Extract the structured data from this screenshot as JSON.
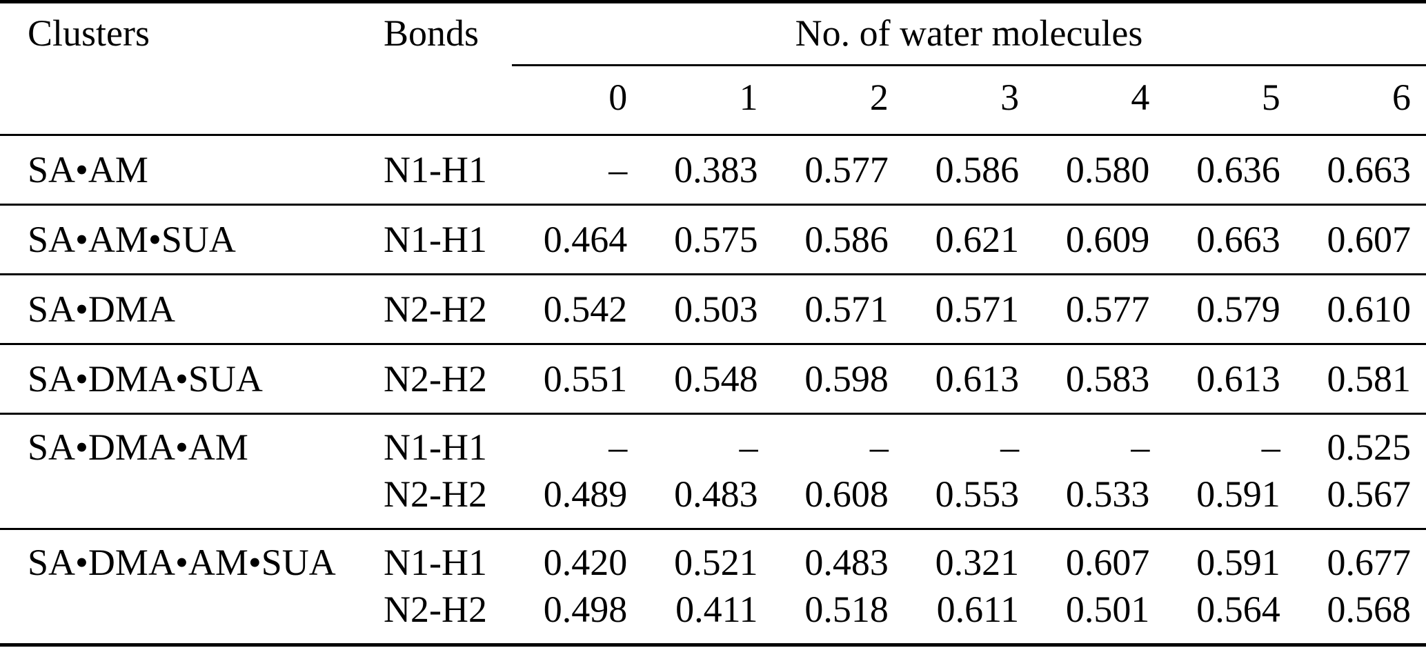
{
  "page": {
    "background": "#ffffff",
    "text_color": "#000000",
    "rule_color": "#000000"
  },
  "table": {
    "headers": {
      "clusters": "Clusters",
      "bonds": "Bonds",
      "water_group": "No. of water molecules"
    },
    "water_counts": [
      "0",
      "1",
      "2",
      "3",
      "4",
      "5",
      "6"
    ],
    "missing_value_symbol": "–",
    "groups": [
      {
        "cluster": "SA•AM",
        "rows": [
          {
            "bond": "N1-H1",
            "values": [
              "–",
              "0.383",
              "0.577",
              "0.586",
              "0.580",
              "0.636",
              "0.663"
            ]
          }
        ]
      },
      {
        "cluster": "SA•AM•SUA",
        "rows": [
          {
            "bond": "N1-H1",
            "values": [
              "0.464",
              "0.575",
              "0.586",
              "0.621",
              "0.609",
              "0.663",
              "0.607"
            ]
          }
        ]
      },
      {
        "cluster": "SA•DMA",
        "rows": [
          {
            "bond": "N2-H2",
            "values": [
              "0.542",
              "0.503",
              "0.571",
              "0.571",
              "0.577",
              "0.579",
              "0.610"
            ]
          }
        ]
      },
      {
        "cluster": "SA•DMA•SUA",
        "rows": [
          {
            "bond": "N2-H2",
            "values": [
              "0.551",
              "0.548",
              "0.598",
              "0.613",
              "0.583",
              "0.613",
              "0.581"
            ]
          }
        ]
      },
      {
        "cluster": "SA•DMA•AM",
        "rows": [
          {
            "bond": "N1-H1",
            "values": [
              "–",
              "–",
              "–",
              "–",
              "–",
              "–",
              "0.525"
            ]
          },
          {
            "bond": "N2-H2",
            "values": [
              "0.489",
              "0.483",
              "0.608",
              "0.553",
              "0.533",
              "0.591",
              "0.567"
            ]
          }
        ]
      },
      {
        "cluster": "SA•DMA•AM•SUA",
        "rows": [
          {
            "bond": "N1-H1",
            "values": [
              "0.420",
              "0.521",
              "0.483",
              "0.321",
              "0.607",
              "0.591",
              "0.677"
            ]
          },
          {
            "bond": "N2-H2",
            "values": [
              "0.498",
              "0.411",
              "0.518",
              "0.611",
              "0.501",
              "0.564",
              "0.568"
            ]
          }
        ]
      }
    ]
  }
}
